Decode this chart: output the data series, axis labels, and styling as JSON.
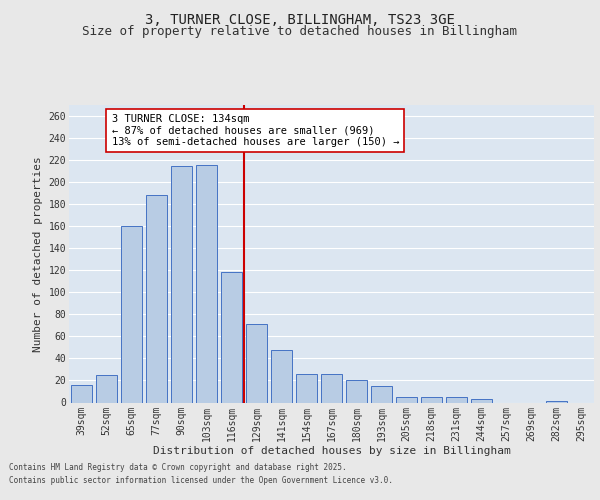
{
  "title": "3, TURNER CLOSE, BILLINGHAM, TS23 3GE",
  "subtitle": "Size of property relative to detached houses in Billingham",
  "xlabel": "Distribution of detached houses by size in Billingham",
  "ylabel": "Number of detached properties",
  "footer_line1": "Contains HM Land Registry data © Crown copyright and database right 2025.",
  "footer_line2": "Contains public sector information licensed under the Open Government Licence v3.0.",
  "categories": [
    "39sqm",
    "52sqm",
    "65sqm",
    "77sqm",
    "90sqm",
    "103sqm",
    "116sqm",
    "129sqm",
    "141sqm",
    "154sqm",
    "167sqm",
    "180sqm",
    "193sqm",
    "205sqm",
    "218sqm",
    "231sqm",
    "244sqm",
    "257sqm",
    "269sqm",
    "282sqm",
    "295sqm"
  ],
  "values": [
    16,
    25,
    160,
    188,
    215,
    216,
    118,
    71,
    48,
    26,
    26,
    20,
    15,
    5,
    5,
    5,
    3,
    0,
    0,
    1,
    0
  ],
  "bar_color": "#b8cce4",
  "bar_edge_color": "#4472c4",
  "background_color": "#dce6f1",
  "grid_color": "#ffffff",
  "fig_background_color": "#e8e8e8",
  "annotation_box_text": "3 TURNER CLOSE: 134sqm\n← 87% of detached houses are smaller (969)\n13% of semi-detached houses are larger (150) →",
  "vline_x_index": 6.5,
  "vline_color": "#cc0000",
  "annotation_box_color": "#cc0000",
  "ylim": [
    0,
    270
  ],
  "yticks": [
    0,
    20,
    40,
    60,
    80,
    100,
    120,
    140,
    160,
    180,
    200,
    220,
    240,
    260
  ],
  "title_fontsize": 10,
  "subtitle_fontsize": 9,
  "ylabel_fontsize": 8,
  "xlabel_fontsize": 8,
  "tick_fontsize": 7,
  "annotation_fontsize": 7.5,
  "footer_fontsize": 5.5
}
